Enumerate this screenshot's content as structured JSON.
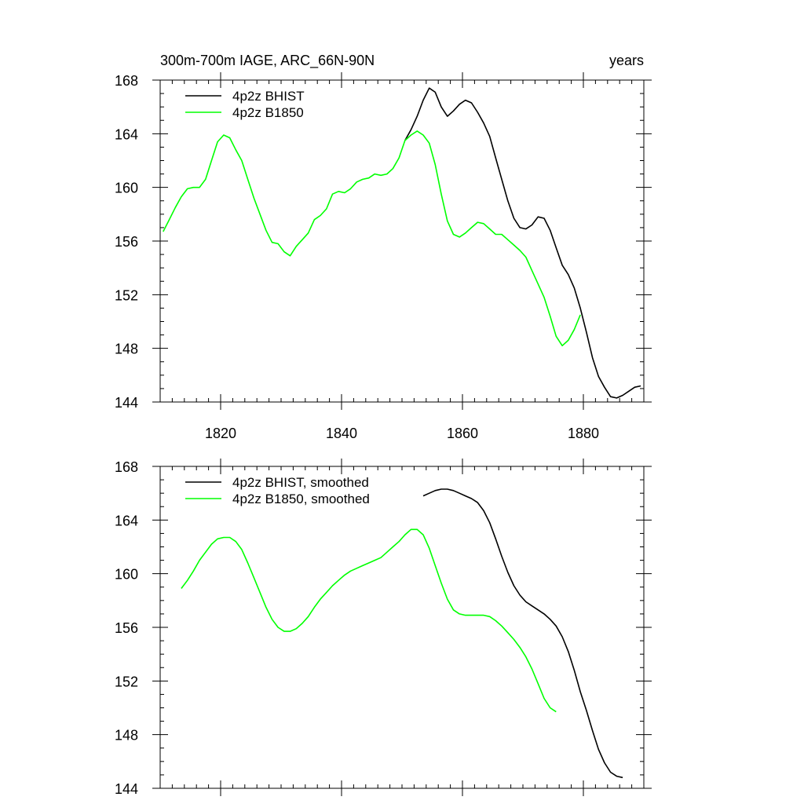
{
  "figure": {
    "left_title": "300m-700m IAGE, ARC_66N-90N",
    "right_title": "years"
  },
  "chart_data": [
    {
      "type": "line",
      "xlim": [
        1810,
        1890
      ],
      "ylim": [
        144,
        168
      ],
      "xticks": [
        1820,
        1840,
        1860,
        1880
      ],
      "yticks": [
        144,
        148,
        152,
        156,
        160,
        164,
        168
      ],
      "x_tick_labels_shown": true,
      "grid": false,
      "legend_position": "top-left",
      "series": [
        {
          "name": "4p2z BHIST",
          "color": "#000000",
          "points": [
            [
              1850.5,
              163.5
            ],
            [
              1851.5,
              164.3
            ],
            [
              1852.5,
              165.3
            ],
            [
              1853.5,
              166.5
            ],
            [
              1854.5,
              167.4
            ],
            [
              1855.5,
              167.1
            ],
            [
              1856.5,
              166.0
            ],
            [
              1857.5,
              165.3
            ],
            [
              1858.5,
              165.7
            ],
            [
              1859.5,
              166.2
            ],
            [
              1860.5,
              166.5
            ],
            [
              1861.5,
              166.3
            ],
            [
              1862.5,
              165.6
            ],
            [
              1863.5,
              164.8
            ],
            [
              1864.5,
              163.8
            ],
            [
              1865.5,
              162.2
            ],
            [
              1866.5,
              160.6
            ],
            [
              1867.5,
              159.0
            ],
            [
              1868.5,
              157.7
            ],
            [
              1869.5,
              157.0
            ],
            [
              1870.5,
              156.9
            ],
            [
              1871.5,
              157.2
            ],
            [
              1872.5,
              157.8
            ],
            [
              1873.5,
              157.7
            ],
            [
              1874.5,
              156.8
            ],
            [
              1875.5,
              155.5
            ],
            [
              1876.5,
              154.2
            ],
            [
              1877.5,
              153.5
            ],
            [
              1878.5,
              152.5
            ],
            [
              1879.5,
              151.0
            ],
            [
              1880.5,
              149.2
            ],
            [
              1881.5,
              147.3
            ],
            [
              1882.5,
              145.9
            ],
            [
              1883.5,
              145.1
            ],
            [
              1884.5,
              144.4
            ],
            [
              1885.5,
              144.3
            ],
            [
              1886.5,
              144.5
            ],
            [
              1887.5,
              144.8
            ],
            [
              1888.5,
              145.1
            ],
            [
              1889.5,
              145.2
            ]
          ]
        },
        {
          "name": "4p2z B1850",
          "color": "#00ff00",
          "points": [
            [
              1810.5,
              156.7
            ],
            [
              1811.5,
              157.6
            ],
            [
              1812.5,
              158.5
            ],
            [
              1813.5,
              159.3
            ],
            [
              1814.5,
              159.9
            ],
            [
              1815.5,
              160.0
            ],
            [
              1816.5,
              160.0
            ],
            [
              1817.5,
              160.6
            ],
            [
              1818.5,
              162.0
            ],
            [
              1819.5,
              163.4
            ],
            [
              1820.5,
              163.9
            ],
            [
              1821.5,
              163.7
            ],
            [
              1822.5,
              162.8
            ],
            [
              1823.5,
              162.0
            ],
            [
              1824.5,
              160.6
            ],
            [
              1825.5,
              159.2
            ],
            [
              1826.5,
              158.0
            ],
            [
              1827.5,
              156.8
            ],
            [
              1828.5,
              155.9
            ],
            [
              1829.5,
              155.8
            ],
            [
              1830.5,
              155.2
            ],
            [
              1831.5,
              154.9
            ],
            [
              1832.5,
              155.6
            ],
            [
              1833.5,
              156.1
            ],
            [
              1834.5,
              156.6
            ],
            [
              1835.5,
              157.6
            ],
            [
              1836.5,
              157.9
            ],
            [
              1837.5,
              158.4
            ],
            [
              1838.5,
              159.5
            ],
            [
              1839.5,
              159.7
            ],
            [
              1840.5,
              159.6
            ],
            [
              1841.5,
              159.9
            ],
            [
              1842.5,
              160.4
            ],
            [
              1843.5,
              160.6
            ],
            [
              1844.5,
              160.7
            ],
            [
              1845.5,
              161.0
            ],
            [
              1846.5,
              160.9
            ],
            [
              1847.5,
              161.0
            ],
            [
              1848.5,
              161.4
            ],
            [
              1849.5,
              162.2
            ],
            [
              1850.5,
              163.5
            ],
            [
              1851.5,
              163.9
            ],
            [
              1852.5,
              164.2
            ],
            [
              1853.5,
              163.9
            ],
            [
              1854.5,
              163.3
            ],
            [
              1855.5,
              161.7
            ],
            [
              1856.5,
              159.5
            ],
            [
              1857.5,
              157.5
            ],
            [
              1858.5,
              156.5
            ],
            [
              1859.5,
              156.3
            ],
            [
              1860.5,
              156.6
            ],
            [
              1861.5,
              157.0
            ],
            [
              1862.5,
              157.4
            ],
            [
              1863.5,
              157.3
            ],
            [
              1864.5,
              156.9
            ],
            [
              1865.5,
              156.5
            ],
            [
              1866.5,
              156.5
            ],
            [
              1867.5,
              156.1
            ],
            [
              1868.5,
              155.7
            ],
            [
              1869.5,
              155.3
            ],
            [
              1870.5,
              154.8
            ],
            [
              1871.5,
              153.8
            ],
            [
              1872.5,
              152.8
            ],
            [
              1873.5,
              151.8
            ],
            [
              1874.5,
              150.4
            ],
            [
              1875.5,
              148.9
            ],
            [
              1876.5,
              148.2
            ],
            [
              1877.5,
              148.6
            ],
            [
              1878.5,
              149.4
            ],
            [
              1879.5,
              150.5
            ]
          ]
        }
      ]
    },
    {
      "type": "line",
      "xlim": [
        1810,
        1890
      ],
      "ylim": [
        144,
        168
      ],
      "xticks": [
        1820,
        1840,
        1860,
        1880
      ],
      "yticks": [
        144,
        148,
        152,
        156,
        160,
        164,
        168
      ],
      "x_tick_labels_shown": false,
      "grid": false,
      "legend_position": "top-left",
      "series": [
        {
          "name": "4p2z BHIST, smoothed",
          "color": "#000000",
          "points": [
            [
              1853.5,
              165.8
            ],
            [
              1854.5,
              166.0
            ],
            [
              1855.5,
              166.2
            ],
            [
              1856.5,
              166.3
            ],
            [
              1857.5,
              166.3
            ],
            [
              1858.5,
              166.2
            ],
            [
              1859.5,
              166.0
            ],
            [
              1860.5,
              165.8
            ],
            [
              1861.5,
              165.6
            ],
            [
              1862.5,
              165.3
            ],
            [
              1863.5,
              164.7
            ],
            [
              1864.5,
              163.8
            ],
            [
              1865.5,
              162.6
            ],
            [
              1866.5,
              161.3
            ],
            [
              1867.5,
              160.1
            ],
            [
              1868.5,
              159.1
            ],
            [
              1869.5,
              158.4
            ],
            [
              1870.5,
              157.9
            ],
            [
              1871.5,
              157.6
            ],
            [
              1872.5,
              157.3
            ],
            [
              1873.5,
              157.0
            ],
            [
              1874.5,
              156.6
            ],
            [
              1875.5,
              156.1
            ],
            [
              1876.5,
              155.3
            ],
            [
              1877.5,
              154.2
            ],
            [
              1878.5,
              152.8
            ],
            [
              1879.5,
              151.2
            ],
            [
              1880.5,
              149.8
            ],
            [
              1881.5,
              148.3
            ],
            [
              1882.5,
              146.9
            ],
            [
              1883.5,
              145.9
            ],
            [
              1884.5,
              145.2
            ],
            [
              1885.5,
              144.9
            ],
            [
              1886.5,
              144.8
            ]
          ]
        },
        {
          "name": "4p2z B1850, smoothed",
          "color": "#00ff00",
          "points": [
            [
              1813.5,
              158.9
            ],
            [
              1814.5,
              159.5
            ],
            [
              1815.5,
              160.2
            ],
            [
              1816.5,
              161.0
            ],
            [
              1817.5,
              161.6
            ],
            [
              1818.5,
              162.2
            ],
            [
              1819.5,
              162.6
            ],
            [
              1820.5,
              162.7
            ],
            [
              1821.5,
              162.7
            ],
            [
              1822.5,
              162.4
            ],
            [
              1823.5,
              161.8
            ],
            [
              1824.5,
              160.8
            ],
            [
              1825.5,
              159.7
            ],
            [
              1826.5,
              158.6
            ],
            [
              1827.5,
              157.5
            ],
            [
              1828.5,
              156.6
            ],
            [
              1829.5,
              156.0
            ],
            [
              1830.5,
              155.7
            ],
            [
              1831.5,
              155.7
            ],
            [
              1832.5,
              155.9
            ],
            [
              1833.5,
              156.3
            ],
            [
              1834.5,
              156.8
            ],
            [
              1835.5,
              157.5
            ],
            [
              1836.5,
              158.1
            ],
            [
              1837.5,
              158.6
            ],
            [
              1838.5,
              159.1
            ],
            [
              1839.5,
              159.5
            ],
            [
              1840.5,
              159.9
            ],
            [
              1841.5,
              160.2
            ],
            [
              1842.5,
              160.4
            ],
            [
              1843.5,
              160.6
            ],
            [
              1844.5,
              160.8
            ],
            [
              1845.5,
              161.0
            ],
            [
              1846.5,
              161.2
            ],
            [
              1847.5,
              161.6
            ],
            [
              1848.5,
              162.0
            ],
            [
              1849.5,
              162.4
            ],
            [
              1850.5,
              162.9
            ],
            [
              1851.5,
              163.3
            ],
            [
              1852.5,
              163.3
            ],
            [
              1853.5,
              162.9
            ],
            [
              1854.5,
              161.9
            ],
            [
              1855.5,
              160.6
            ],
            [
              1856.5,
              159.3
            ],
            [
              1857.5,
              158.1
            ],
            [
              1858.5,
              157.3
            ],
            [
              1859.5,
              157.0
            ],
            [
              1860.5,
              156.9
            ],
            [
              1861.5,
              156.9
            ],
            [
              1862.5,
              156.9
            ],
            [
              1863.5,
              156.9
            ],
            [
              1864.5,
              156.8
            ],
            [
              1865.5,
              156.5
            ],
            [
              1866.5,
              156.1
            ],
            [
              1867.5,
              155.6
            ],
            [
              1868.5,
              155.1
            ],
            [
              1869.5,
              154.5
            ],
            [
              1870.5,
              153.8
            ],
            [
              1871.5,
              152.9
            ],
            [
              1872.5,
              151.8
            ],
            [
              1873.5,
              150.7
            ],
            [
              1874.5,
              150.0
            ],
            [
              1875.5,
              149.7
            ]
          ]
        }
      ]
    }
  ]
}
